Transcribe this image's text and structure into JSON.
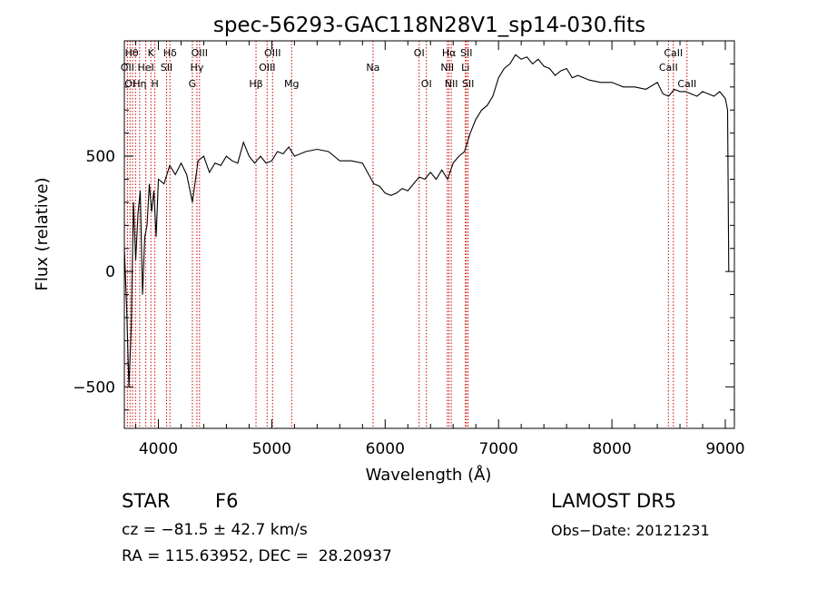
{
  "chart_data": {
    "type": "line",
    "title": "spec-56293-GAC118N28V1_sp14-030.fits",
    "xlabel": "Wavelength (Å)",
    "ylabel": "Flux (relative)",
    "xlim": [
      3700,
      9080
    ],
    "ylim": [
      -680,
      1000
    ],
    "xticks": [
      4000,
      5000,
      6000,
      7000,
      8000,
      9000
    ],
    "yticks": [
      -500,
      0,
      500
    ],
    "grid": false,
    "line_color": "#000000",
    "marker_color": "#cc0000",
    "series": [
      {
        "x": [
          3700,
          3720,
          3740,
          3760,
          3780,
          3800,
          3820,
          3840,
          3860,
          3880,
          3900,
          3920,
          3940,
          3960,
          3980,
          4000,
          4050,
          4100,
          4150,
          4200,
          4250,
          4300,
          4350,
          4400,
          4450,
          4500,
          4550,
          4600,
          4650,
          4700,
          4750,
          4800,
          4850,
          4900,
          4950,
          5000,
          5050,
          5100,
          5150,
          5200,
          5300,
          5400,
          5500,
          5600,
          5700,
          5800,
          5900,
          5950,
          6000,
          6050,
          6100,
          6150,
          6200,
          6250,
          6300,
          6350,
          6400,
          6450,
          6500,
          6550,
          6600,
          6650,
          6700,
          6750,
          6800,
          6850,
          6900,
          6950,
          7000,
          7050,
          7100,
          7150,
          7200,
          7250,
          7300,
          7350,
          7400,
          7450,
          7500,
          7550,
          7600,
          7650,
          7700,
          7800,
          7900,
          8000,
          8100,
          8200,
          8300,
          8400,
          8450,
          8500,
          8550,
          8600,
          8650,
          8700,
          8750,
          8800,
          8850,
          8900,
          8950,
          9000,
          9020,
          9030
        ],
        "y": [
          100,
          -150,
          -500,
          -250,
          300,
          50,
          250,
          350,
          -100,
          150,
          200,
          380,
          260,
          350,
          150,
          400,
          380,
          460,
          420,
          470,
          420,
          300,
          480,
          500,
          430,
          470,
          460,
          500,
          480,
          470,
          560,
          500,
          470,
          500,
          470,
          480,
          520,
          510,
          540,
          500,
          520,
          530,
          520,
          480,
          480,
          470,
          380,
          370,
          340,
          330,
          340,
          360,
          350,
          380,
          410,
          400,
          430,
          400,
          440,
          400,
          470,
          500,
          520,
          600,
          660,
          700,
          720,
          760,
          840,
          880,
          900,
          940,
          920,
          930,
          900,
          920,
          890,
          880,
          850,
          870,
          880,
          840,
          850,
          830,
          820,
          820,
          800,
          800,
          790,
          820,
          770,
          760,
          790,
          780,
          780,
          770,
          760,
          780,
          770,
          760,
          780,
          750,
          700,
          0
        ]
      }
    ],
    "lines": [
      {
        "x": 3727
      },
      {
        "x": 3750
      },
      {
        "x": 3772
      },
      {
        "x": 3798
      },
      {
        "x": 3835
      },
      {
        "x": 3889
      },
      {
        "x": 3934
      },
      {
        "x": 3969
      },
      {
        "x": 4072
      },
      {
        "x": 4102
      },
      {
        "x": 4300
      },
      {
        "x": 4340
      },
      {
        "x": 4363
      },
      {
        "x": 4861
      },
      {
        "x": 4959
      },
      {
        "x": 5007
      },
      {
        "x": 5175
      },
      {
        "x": 5893
      },
      {
        "x": 6300
      },
      {
        "x": 6364
      },
      {
        "x": 6548
      },
      {
        "x": 6563
      },
      {
        "x": 6583
      },
      {
        "x": 6708
      },
      {
        "x": 6716
      },
      {
        "x": 6731
      },
      {
        "x": 8498
      },
      {
        "x": 8542
      },
      {
        "x": 8662
      }
    ],
    "line_labels": [
      {
        "text": "Hθ",
        "x": 3765,
        "row": 1
      },
      {
        "text": "K",
        "x": 3934,
        "row": 1
      },
      {
        "text": "Hδ",
        "x": 4102,
        "row": 1
      },
      {
        "text": "OIII",
        "x": 4363,
        "row": 1
      },
      {
        "text": "OIII",
        "x": 5007,
        "row": 1
      },
      {
        "text": "OI",
        "x": 6300,
        "row": 1
      },
      {
        "text": "Hα",
        "x": 6563,
        "row": 1
      },
      {
        "text": "SII",
        "x": 6716,
        "row": 1
      },
      {
        "text": "CaII",
        "x": 8542,
        "row": 1
      },
      {
        "text": "OII",
        "x": 3727,
        "row": 2
      },
      {
        "text": "HeI",
        "x": 3889,
        "row": 2
      },
      {
        "text": "SII",
        "x": 4072,
        "row": 2
      },
      {
        "text": "Hγ",
        "x": 4340,
        "row": 2
      },
      {
        "text": "OIII",
        "x": 4959,
        "row": 2
      },
      {
        "text": "NII",
        "x": 6548,
        "row": 2
      },
      {
        "text": "Li",
        "x": 6708,
        "row": 2
      },
      {
        "text": "CaII",
        "x": 8498,
        "row": 2
      },
      {
        "text": "OI",
        "x": 3750,
        "row": 3
      },
      {
        "text": "Hη",
        "x": 3835,
        "row": 3
      },
      {
        "text": "H",
        "x": 3969,
        "row": 3
      },
      {
        "text": "G",
        "x": 4300,
        "row": 3
      },
      {
        "text": "Hβ",
        "x": 4861,
        "row": 3
      },
      {
        "text": "Mg",
        "x": 5175,
        "row": 3
      },
      {
        "text": "Na",
        "x": 5893,
        "row": 2
      },
      {
        "text": "OI",
        "x": 6364,
        "row": 3
      },
      {
        "text": "NII",
        "x": 6583,
        "row": 3
      },
      {
        "text": "SII",
        "x": 6731,
        "row": 3
      },
      {
        "text": "CaII",
        "x": 8662,
        "row": 3
      }
    ]
  },
  "footer": {
    "class": "STAR",
    "subclass": "F6",
    "survey": "LAMOST DR5",
    "cz": "cz = −81.5 ± 42.7 km/s",
    "obs_date": "Obs−Date: 20121231",
    "coords": "RA = 115.63952, DEC =  28.20937"
  }
}
